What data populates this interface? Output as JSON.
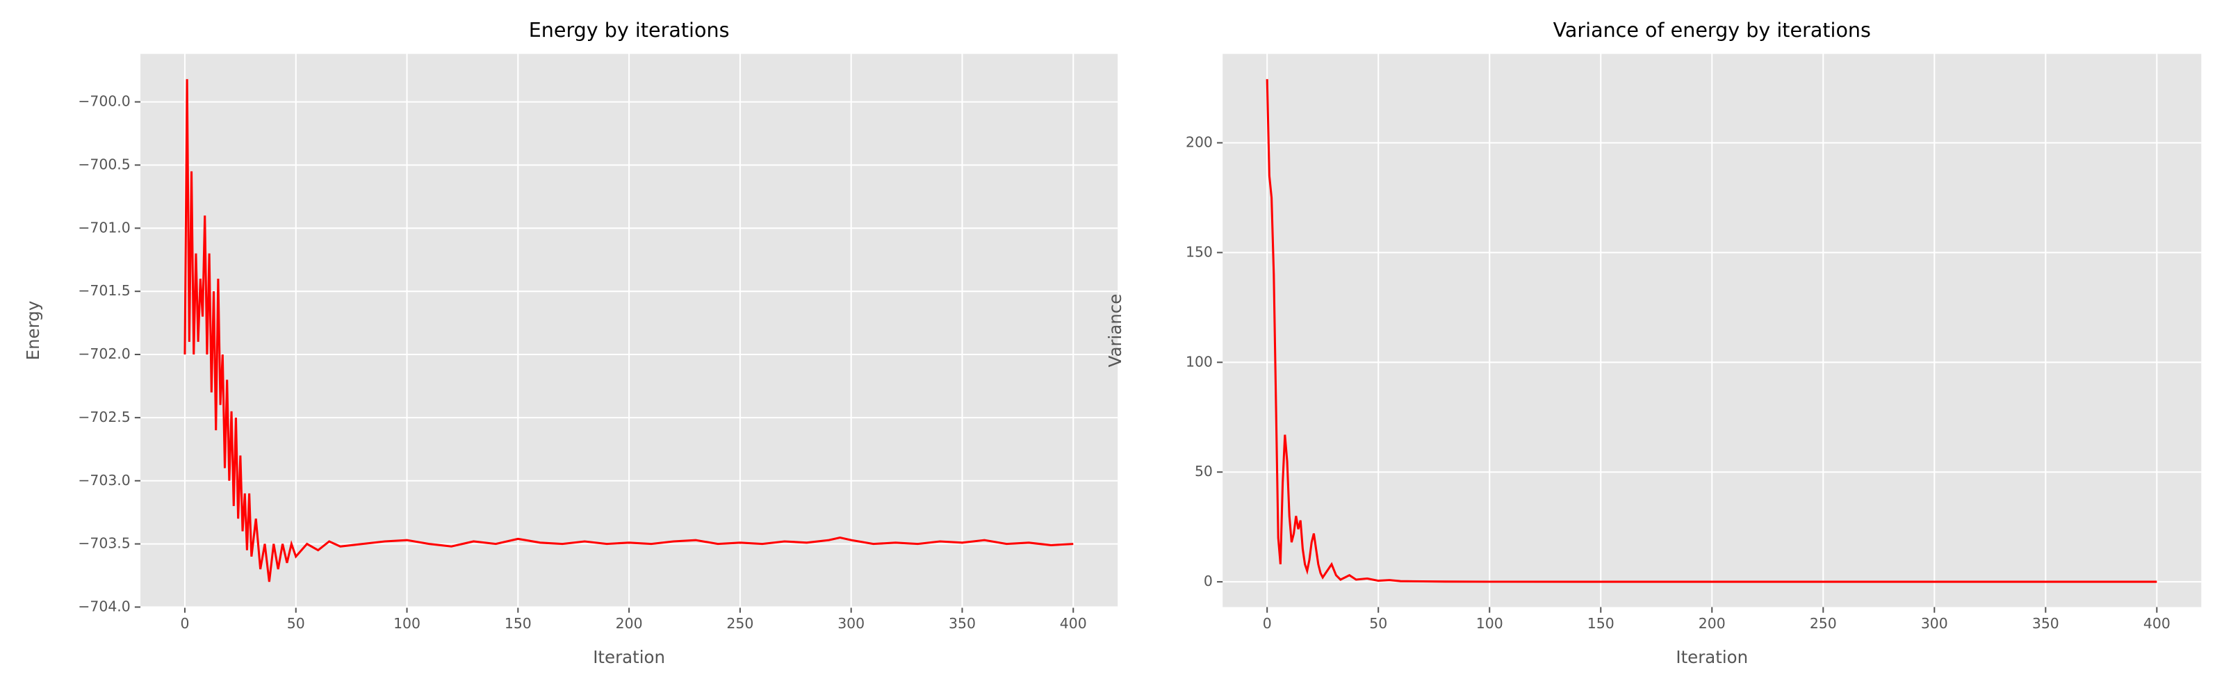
{
  "chart_data": [
    {
      "type": "line",
      "title": "Energy by iterations",
      "xlabel": "Iteration",
      "ylabel": "Energy",
      "x": [
        0,
        1,
        2,
        3,
        4,
        5,
        6,
        7,
        8,
        9,
        10,
        11,
        12,
        13,
        14,
        15,
        16,
        17,
        18,
        19,
        20,
        21,
        22,
        23,
        24,
        25,
        26,
        27,
        28,
        29,
        30,
        32,
        34,
        36,
        38,
        40,
        42,
        44,
        46,
        48,
        50,
        55,
        60,
        65,
        70,
        80,
        90,
        100,
        110,
        120,
        130,
        140,
        150,
        160,
        170,
        180,
        190,
        200,
        210,
        220,
        230,
        240,
        250,
        260,
        270,
        280,
        290,
        295,
        300,
        310,
        320,
        330,
        340,
        350,
        360,
        370,
        380,
        390,
        400
      ],
      "series": [
        {
          "name": "Energy",
          "color": "#ff0000",
          "values": [
            -702.0,
            -699.82,
            -701.9,
            -700.55,
            -702.0,
            -701.2,
            -701.9,
            -701.4,
            -701.7,
            -700.9,
            -702.0,
            -701.2,
            -702.3,
            -701.5,
            -702.6,
            -701.4,
            -702.4,
            -702.0,
            -702.9,
            -702.2,
            -703.0,
            -702.45,
            -703.2,
            -702.5,
            -703.3,
            -702.8,
            -703.4,
            -703.1,
            -703.55,
            -703.1,
            -703.6,
            -703.3,
            -703.7,
            -703.5,
            -703.8,
            -703.5,
            -703.7,
            -703.5,
            -703.65,
            -703.5,
            -703.6,
            -703.5,
            -703.55,
            -703.48,
            -703.52,
            -703.5,
            -703.48,
            -703.47,
            -703.5,
            -703.52,
            -703.48,
            -703.5,
            -703.46,
            -703.49,
            -703.5,
            -703.48,
            -703.5,
            -703.49,
            -703.5,
            -703.48,
            -703.47,
            -703.5,
            -703.49,
            -703.5,
            -703.48,
            -703.49,
            -703.47,
            -703.45,
            -703.47,
            -703.5,
            -703.49,
            -703.5,
            -703.48,
            -703.49,
            -703.47,
            -703.5,
            -703.49,
            -703.51,
            -703.5
          ]
        }
      ],
      "xlim": [
        -20,
        420
      ],
      "xticks": [
        0,
        50,
        100,
        150,
        200,
        250,
        300,
        350,
        400
      ],
      "ylim": [
        -704.0,
        -699.62
      ],
      "yticks": [
        {
          "value": -704.0,
          "label": "−704.0"
        },
        {
          "value": -703.5,
          "label": "−703.5"
        },
        {
          "value": -703.0,
          "label": "−703.0"
        },
        {
          "value": -702.5,
          "label": "−702.5"
        },
        {
          "value": -702.0,
          "label": "−702.0"
        },
        {
          "value": -701.5,
          "label": "−701.5"
        },
        {
          "value": -701.0,
          "label": "−701.0"
        },
        {
          "value": -700.5,
          "label": "−700.5"
        },
        {
          "value": -700.0,
          "label": "−700.0"
        }
      ],
      "grid": true
    },
    {
      "type": "line",
      "title": "Variance of energy by iterations",
      "xlabel": "Iteration",
      "ylabel": "Variance",
      "x": [
        0,
        1,
        2,
        3,
        4,
        5,
        6,
        7,
        8,
        9,
        10,
        11,
        12,
        13,
        14,
        15,
        16,
        17,
        18,
        19,
        20,
        21,
        22,
        23,
        24,
        25,
        27,
        29,
        31,
        33,
        35,
        37,
        40,
        45,
        50,
        55,
        60,
        70,
        80,
        100,
        150,
        200,
        300,
        400
      ],
      "series": [
        {
          "name": "Variance",
          "color": "#ff0000",
          "values": [
            229,
            185,
            175,
            140,
            80,
            20,
            8,
            45,
            67,
            55,
            30,
            18,
            22,
            30,
            24,
            28,
            15,
            8,
            5,
            10,
            18,
            22,
            15,
            8,
            4,
            2,
            5,
            8,
            3,
            1,
            2,
            3,
            1,
            1.5,
            0.5,
            0.8,
            0.3,
            0.2,
            0.1,
            0.05,
            0.02,
            0.02,
            0.02,
            0.02
          ]
        }
      ],
      "xlim": [
        -20,
        420
      ],
      "xticks": [
        0,
        50,
        100,
        150,
        200,
        250,
        300,
        350,
        400
      ],
      "ylim": [
        -11.5,
        240.5
      ],
      "yticks": [
        0,
        50,
        100,
        150,
        200
      ],
      "grid": true
    }
  ]
}
